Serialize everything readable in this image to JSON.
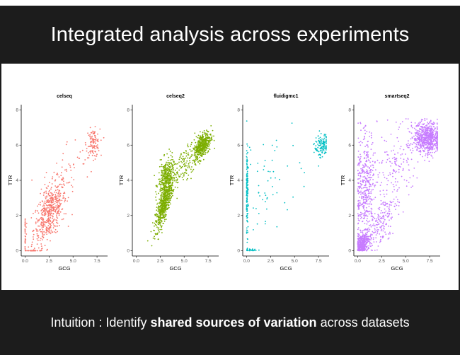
{
  "slide": {
    "title": "Integrated analysis across experiments",
    "footer": {
      "prefix": "Intuition : Identify ",
      "bold": "shared sources of variation",
      "suffix": " across datasets"
    }
  },
  "chart_data": [
    {
      "type": "scatter",
      "title": "celseq",
      "xlabel": "GCG",
      "ylabel": "TTR",
      "color": "#F8766D",
      "xlim": [
        -0.4,
        8.6
      ],
      "ylim": [
        -0.3,
        8.3
      ],
      "xticks": [
        "0.0",
        "2.5",
        "5.0",
        "7.5"
      ],
      "yticks": [
        "0",
        "2",
        "4",
        "6",
        "8"
      ],
      "clusters": [
        {
          "cx": 2.6,
          "cy": 2.2,
          "sx": 0.85,
          "sy": 0.9,
          "n": 480,
          "corr": 0.55
        },
        {
          "cx": 7.1,
          "cy": 6.1,
          "sx": 0.35,
          "sy": 0.4,
          "n": 110,
          "corr": 0.0
        },
        {
          "cx": 0.8,
          "cy": 0.0,
          "sx": 0.45,
          "sy": 0.0,
          "n": 35,
          "corr": 0.0
        },
        {
          "cx": 0.0,
          "cy": 1.0,
          "sx": 0.03,
          "sy": 0.6,
          "n": 30,
          "corr": 0.0
        },
        {
          "cx": 4.5,
          "cy": 4.6,
          "sx": 1.3,
          "sy": 0.9,
          "n": 45,
          "corr": 0.3
        }
      ]
    },
    {
      "type": "scatter",
      "title": "celseq2",
      "xlabel": "GCG",
      "ylabel": "TTR",
      "color": "#7CAE00",
      "xlim": [
        -0.4,
        8.6
      ],
      "ylim": [
        -0.3,
        8.3
      ],
      "xticks": [
        "0.0",
        "2.5",
        "5.0",
        "7.5"
      ],
      "yticks": [
        "0",
        "2",
        "4",
        "6",
        "8"
      ],
      "clusters": [
        {
          "cx": 2.9,
          "cy": 2.6,
          "sx": 0.45,
          "sy": 0.7,
          "n": 500,
          "corr": 0.8
        },
        {
          "cx": 3.1,
          "cy": 4.1,
          "sx": 0.4,
          "sy": 0.55,
          "n": 350,
          "corr": 0.3
        },
        {
          "cx": 6.9,
          "cy": 6.0,
          "sx": 0.45,
          "sy": 0.4,
          "n": 420,
          "corr": 0.5
        },
        {
          "cx": 5.0,
          "cy": 4.8,
          "sx": 0.7,
          "sy": 0.6,
          "n": 120,
          "corr": 0.6
        }
      ]
    },
    {
      "type": "scatter",
      "title": "fluidigmc1",
      "xlabel": "GCG",
      "ylabel": "TTR",
      "color": "#00BFC4",
      "xlim": [
        -0.4,
        8.6
      ],
      "ylim": [
        -0.3,
        8.3
      ],
      "xticks": [
        "0.0",
        "2.5",
        "5.0",
        "7.5"
      ],
      "yticks": [
        "0",
        "2",
        "4",
        "6",
        "8"
      ],
      "clusters": [
        {
          "cx": 0.05,
          "cy": 3.4,
          "sx": 0.06,
          "sy": 1.3,
          "n": 140,
          "corr": 0.0
        },
        {
          "cx": 7.9,
          "cy": 6.0,
          "sx": 0.35,
          "sy": 0.35,
          "n": 120,
          "corr": 0.0
        },
        {
          "cx": 2.5,
          "cy": 3.5,
          "sx": 1.6,
          "sy": 1.3,
          "n": 55,
          "corr": 0.3
        },
        {
          "cx": 0.5,
          "cy": 0.05,
          "sx": 0.35,
          "sy": 0.05,
          "n": 25,
          "corr": 0.0
        }
      ]
    },
    {
      "type": "scatter",
      "title": "smartseq2",
      "xlabel": "GCG",
      "ylabel": "TTR",
      "color": "#C77CFF",
      "xlim": [
        -0.4,
        8.6
      ],
      "ylim": [
        -0.3,
        8.3
      ],
      "xticks": [
        "0.0",
        "2.5",
        "5.0",
        "7.5"
      ],
      "yticks": [
        "0",
        "2",
        "4",
        "6",
        "8"
      ],
      "clusters": [
        {
          "cx": 0.5,
          "cy": 0.4,
          "sx": 0.35,
          "sy": 0.3,
          "n": 380,
          "corr": 0.4
        },
        {
          "cx": 0.7,
          "cy": 3.5,
          "sx": 0.55,
          "sy": 1.6,
          "n": 420,
          "corr": 0.2
        },
        {
          "cx": 7.3,
          "cy": 6.4,
          "sx": 0.75,
          "sy": 0.45,
          "n": 650,
          "corr": 0.0
        },
        {
          "cx": 2.4,
          "cy": 1.6,
          "sx": 0.8,
          "sy": 0.8,
          "n": 180,
          "corr": 0.6
        },
        {
          "cx": 3.8,
          "cy": 4.6,
          "sx": 1.2,
          "sy": 1.2,
          "n": 150,
          "corr": 0.3
        }
      ]
    }
  ]
}
